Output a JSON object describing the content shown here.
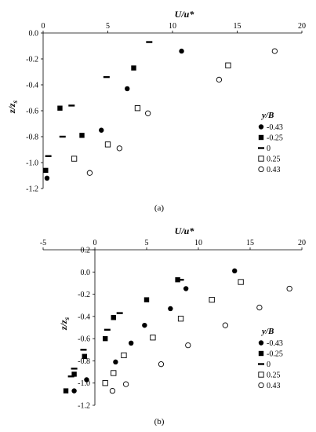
{
  "chart_data": [
    {
      "type": "scatter",
      "panel_label": "(a)",
      "xlabel": "U/u*",
      "ylabel": "z/z_s",
      "xlim": [
        0,
        20
      ],
      "ylim": [
        -1.2,
        0.0
      ],
      "x_ticks": [
        0,
        5,
        10,
        15,
        20
      ],
      "y_ticks": [
        0.0,
        -0.2,
        -0.4,
        -0.6,
        -0.8,
        -1.0,
        -1.2
      ],
      "x_tick_labels": [
        "0",
        "5",
        "10",
        "15",
        "20"
      ],
      "y_tick_labels": [
        "0.0",
        "-0.2",
        "-0.4",
        "-0.6",
        "-0.8",
        "-1.0",
        "-1.2"
      ],
      "x_axis_position": "top",
      "grid": false,
      "legend_title": "y/B",
      "legend_position": "right",
      "series": [
        {
          "name": "-0.43",
          "marker": "filled-circle",
          "x": [
            10.7,
            6.5,
            4.5,
            2.4,
            0.3
          ],
          "y": [
            -0.14,
            -0.43,
            -0.75,
            -0.97,
            -1.12
          ]
        },
        {
          "name": "-0.25",
          "marker": "filled-square",
          "x": [
            7.0,
            1.3,
            3.0,
            0.2
          ],
          "y": [
            -0.27,
            -0.58,
            -0.79,
            -1.06
          ]
        },
        {
          "name": "0",
          "marker": "dash",
          "x": [
            8.2,
            4.9,
            2.2,
            1.5,
            0.4
          ],
          "y": [
            -0.07,
            -0.34,
            -0.56,
            -0.8,
            -0.95
          ]
        },
        {
          "name": "0.25",
          "marker": "open-square",
          "x": [
            14.3,
            7.3,
            5.0,
            2.4
          ],
          "y": [
            -0.25,
            -0.58,
            -0.86,
            -0.97
          ]
        },
        {
          "name": "0.43",
          "marker": "open-circle",
          "x": [
            17.9,
            13.6,
            8.1,
            5.9,
            3.6
          ],
          "y": [
            -0.14,
            -0.36,
            -0.62,
            -0.89,
            -1.08
          ]
        }
      ]
    },
    {
      "type": "scatter",
      "panel_label": "(b)",
      "xlabel": "U/u*",
      "ylabel": "z/z_s",
      "xlim": [
        -5,
        20
      ],
      "ylim": [
        -1.2,
        0.2
      ],
      "x_ticks": [
        -5,
        0,
        5,
        10,
        15,
        20
      ],
      "y_ticks": [
        0.2,
        0.0,
        -0.2,
        -0.4,
        -0.6,
        -0.8,
        -1.0,
        -1.2
      ],
      "x_tick_labels": [
        "-5",
        "0",
        "5",
        "10",
        "15",
        "20"
      ],
      "y_tick_labels": [
        "0.2",
        "0.0",
        "-0.2",
        "-0.4",
        "-0.6",
        "-0.8",
        "-1.0",
        "-1.2"
      ],
      "x_axis_position": "top",
      "grid": false,
      "legend_title": "y/B",
      "legend_position": "right",
      "series": [
        {
          "name": "-0.43",
          "marker": "filled-circle",
          "x": [
            13.5,
            8.8,
            7.3,
            4.8,
            3.5,
            2.0,
            -0.8,
            -2.0
          ],
          "y": [
            0.01,
            -0.15,
            -0.33,
            -0.48,
            -0.64,
            -0.81,
            -0.97,
            -1.07
          ]
        },
        {
          "name": "-0.25",
          "marker": "filled-square",
          "x": [
            8.0,
            5.0,
            1.8,
            1.0,
            -1.0,
            -2.0,
            -2.8
          ],
          "y": [
            -0.07,
            -0.25,
            -0.41,
            -0.6,
            -0.76,
            -0.92,
            -1.07
          ]
        },
        {
          "name": "0",
          "marker": "dash",
          "x": [
            8.3,
            2.4,
            1.2,
            -1.1,
            -2.0,
            -2.3
          ],
          "y": [
            -0.07,
            -0.37,
            -0.52,
            -0.7,
            -0.87,
            -0.94
          ]
        },
        {
          "name": "0.25",
          "marker": "open-square",
          "x": [
            14.1,
            11.3,
            8.3,
            5.6,
            2.8,
            1.8,
            1.0
          ],
          "y": [
            -0.09,
            -0.25,
            -0.42,
            -0.59,
            -0.75,
            -0.91,
            -1.0
          ]
        },
        {
          "name": "0.43",
          "marker": "open-circle",
          "x": [
            18.8,
            15.9,
            12.6,
            9.0,
            6.4,
            3.0,
            1.7
          ],
          "y": [
            -0.15,
            -0.32,
            -0.48,
            -0.66,
            -0.83,
            -1.01,
            -1.07
          ]
        }
      ]
    }
  ]
}
